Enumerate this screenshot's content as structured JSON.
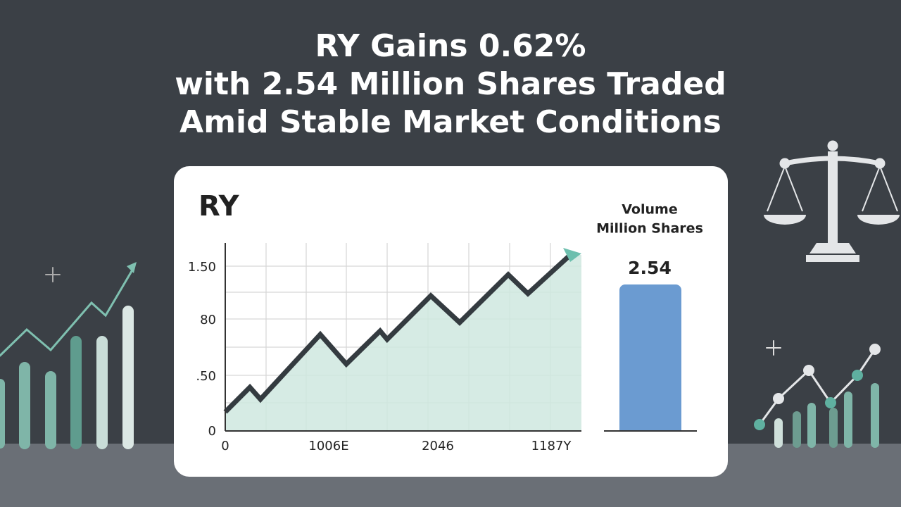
{
  "title_lines": [
    "RY Gains 0.62%",
    "with 2.54 Million Shares Traded",
    "Amid Stable Market Conditions"
  ],
  "card": {
    "ticker": "RY",
    "y_labels": [
      "1.50",
      "80",
      ".50",
      "0"
    ],
    "x_labels": [
      "0",
      "1006E",
      "2046",
      "1187Y"
    ]
  },
  "volume": {
    "label_lines": [
      "Volume",
      "Million Shares"
    ],
    "value": 2.54
  }
}
